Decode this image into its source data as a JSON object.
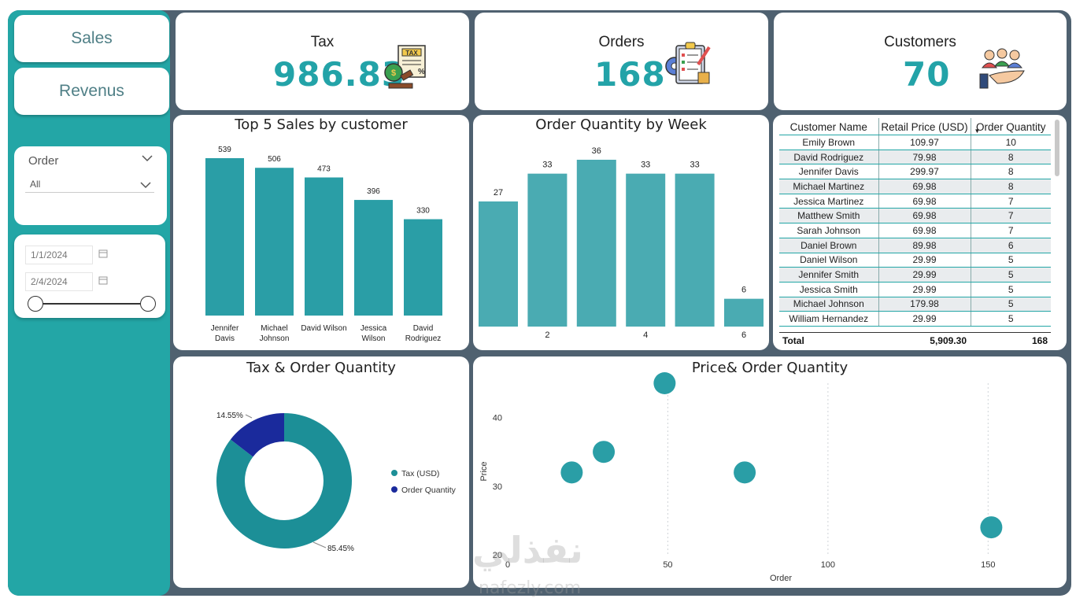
{
  "nav": {
    "sales": "Sales",
    "revenus": "Revenus"
  },
  "filter": {
    "label": "Order",
    "value": "All"
  },
  "dates": {
    "start": "1/1/2024",
    "end": "2/4/2024"
  },
  "kpis": {
    "tax": {
      "title": "Tax",
      "value": "986.83"
    },
    "orders": {
      "title": "Orders",
      "value": "168"
    },
    "customers": {
      "title": "Customers",
      "value": "70"
    }
  },
  "table": {
    "headers": [
      "Customer Name",
      "Retail Price (USD)",
      "Order Quantity"
    ],
    "rows": [
      [
        "Emily Brown",
        "109.97",
        "10"
      ],
      [
        "David Rodriguez",
        "79.98",
        "8"
      ],
      [
        "Jennifer Davis",
        "299.97",
        "8"
      ],
      [
        "Michael Martinez",
        "69.98",
        "8"
      ],
      [
        "Jessica Martinez",
        "69.98",
        "7"
      ],
      [
        "Matthew Smith",
        "69.98",
        "7"
      ],
      [
        "Sarah Johnson",
        "69.98",
        "7"
      ],
      [
        "Daniel Brown",
        "89.98",
        "6"
      ],
      [
        "Daniel Wilson",
        "29.99",
        "5"
      ],
      [
        "Jennifer Smith",
        "29.99",
        "5"
      ],
      [
        "Jessica Smith",
        "29.99",
        "5"
      ],
      [
        "Michael Johnson",
        "179.98",
        "5"
      ],
      [
        "William Hernandez",
        "29.99",
        "5"
      ]
    ],
    "total": {
      "label": "Total",
      "price": "5,909.30",
      "qty": "168"
    }
  },
  "watermark": {
    "arabic": "نفذلي",
    "latin": "nafezly.com"
  },
  "colors": {
    "teal": "#2a9ea6",
    "navy": "#1a2a9c",
    "frame": "#4f6170",
    "sidebar": "#23a6a6"
  },
  "chart_data": [
    {
      "type": "bar",
      "title": "Top 5 Sales by customer",
      "categories": [
        [
          "Jennifer",
          "Davis"
        ],
        [
          "Michael",
          "Johnson"
        ],
        [
          "David Wilson"
        ],
        [
          "Jessica",
          "Wilson"
        ],
        [
          "David",
          "Rodriguez"
        ]
      ],
      "values": [
        539,
        506,
        473,
        396,
        330
      ],
      "ylim": [
        0,
        539
      ]
    },
    {
      "type": "bar",
      "title": "Order Quantity by Week",
      "categories": [
        "",
        "2",
        "",
        "4",
        "",
        "6"
      ],
      "values": [
        27,
        33,
        36,
        33,
        33,
        6
      ],
      "ylim": [
        0,
        36
      ]
    },
    {
      "type": "pie",
      "title": "Tax & Order Quantity",
      "labels": [
        "Tax (USD)",
        "Order Quantity"
      ],
      "values": [
        85.45,
        14.55
      ],
      "value_labels": [
        "85.45%",
        "14.55%"
      ],
      "colors": [
        "#1c8f97",
        "#1a2a9c"
      ],
      "legend": "right"
    },
    {
      "type": "scatter",
      "title": "Price& Order Quantity",
      "xlabel": "Order",
      "ylabel": "Price",
      "xlim": [
        0,
        160
      ],
      "ylim": [
        20,
        45
      ],
      "xticks": [
        0,
        50,
        100,
        150
      ],
      "yticks": [
        20,
        30,
        40
      ],
      "points": [
        {
          "x": 49,
          "y": 45
        },
        {
          "x": 30,
          "y": 35
        },
        {
          "x": 20,
          "y": 32
        },
        {
          "x": 74,
          "y": 32
        },
        {
          "x": 151,
          "y": 24
        }
      ]
    }
  ]
}
